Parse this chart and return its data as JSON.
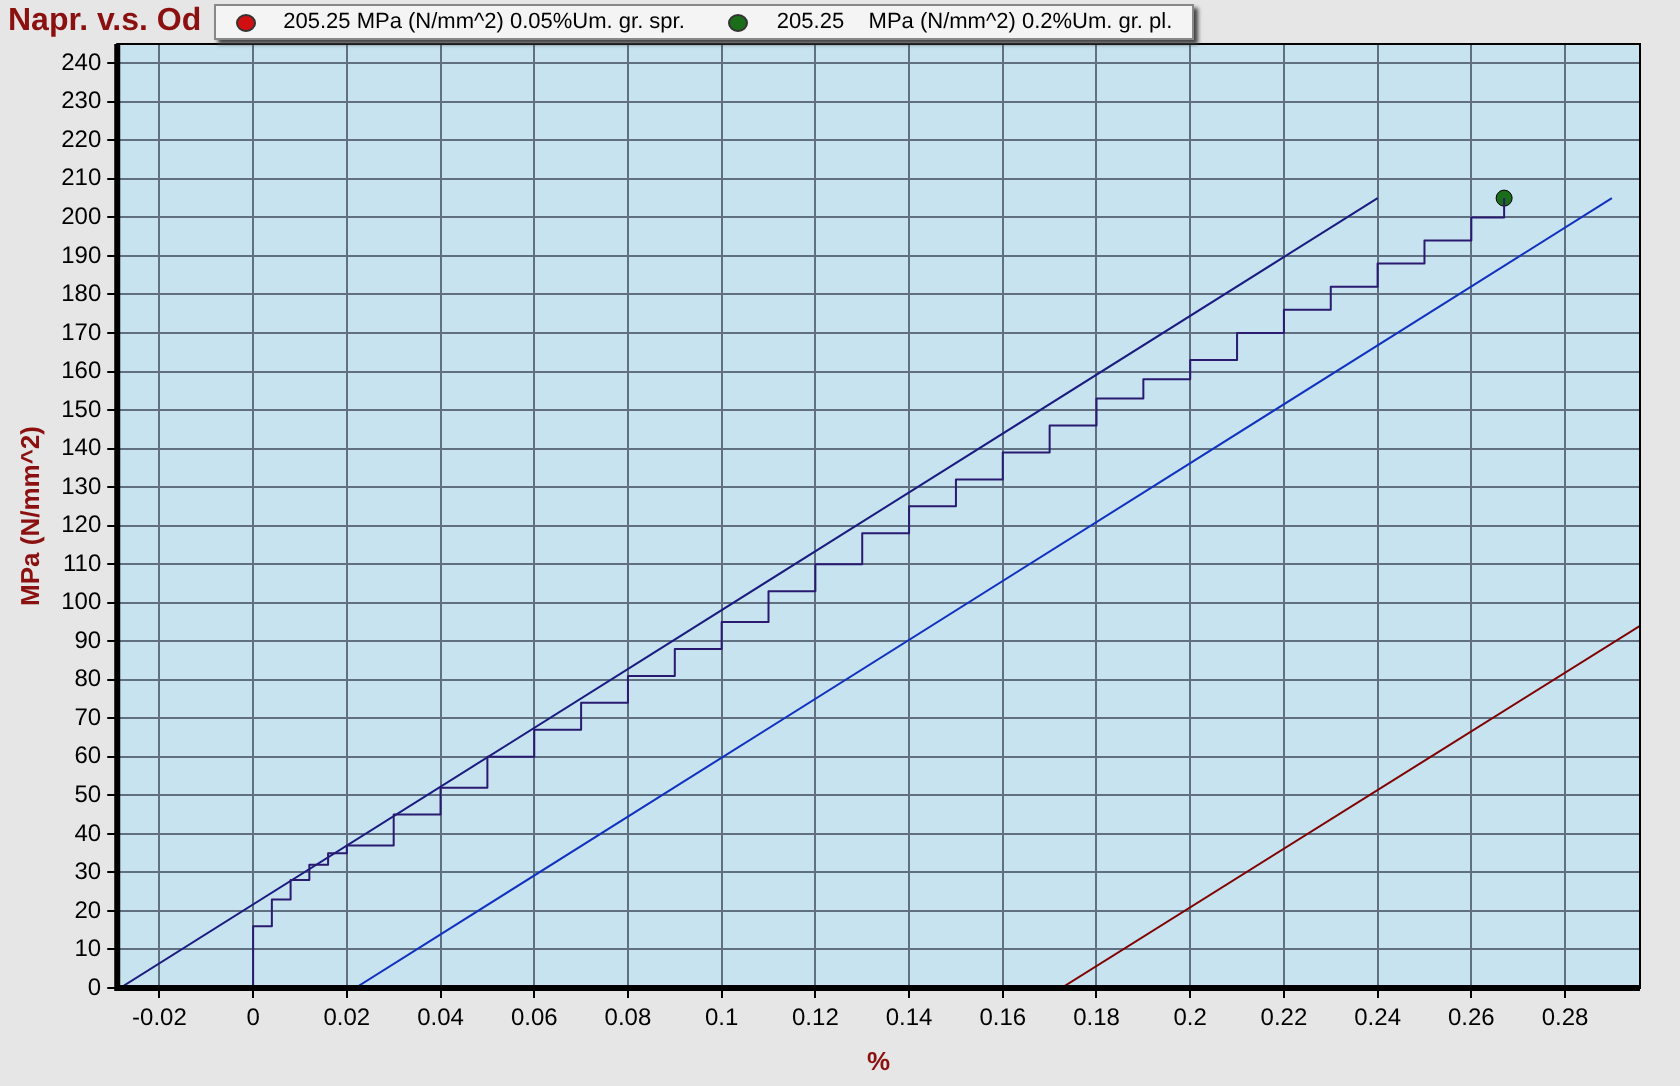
{
  "chart_data": {
    "type": "line",
    "title": "Napr. v.s. Od",
    "xlabel": "%",
    "ylabel": "MPa (N/mm^2)",
    "xlim": [
      -0.029,
      0.296
    ],
    "ylim": [
      0,
      245
    ],
    "xticks": [
      -0.02,
      0,
      0.02,
      0.04,
      0.06,
      0.08,
      0.1,
      0.12,
      0.14,
      0.16,
      0.18,
      0.2,
      0.22,
      0.24,
      0.26,
      0.28
    ],
    "yticks": [
      0,
      10,
      20,
      30,
      40,
      50,
      60,
      70,
      80,
      90,
      100,
      110,
      120,
      130,
      140,
      150,
      160,
      170,
      180,
      190,
      200,
      210,
      220,
      230,
      240
    ],
    "grid": true,
    "legend": "top",
    "marker": "none",
    "series": [
      {
        "type": "step",
        "color": "#2a1a70",
        "x": [
          0,
          0,
          0.004,
          0.008,
          0.012,
          0.016,
          0.02,
          0.03,
          0.04,
          0.05,
          0.06,
          0.07,
          0.08,
          0.09,
          0.1,
          0.11,
          0.12,
          0.13,
          0.14,
          0.15,
          0.16,
          0.17,
          0.18,
          0.19,
          0.2,
          0.21,
          0.22,
          0.23,
          0.24,
          0.25,
          0.26,
          0.267
        ],
        "values": [
          0,
          16,
          23,
          28,
          32,
          35,
          37,
          45,
          52,
          60,
          67,
          74,
          81,
          88,
          95,
          103,
          110,
          118,
          125,
          132,
          139,
          146,
          153,
          158,
          163,
          170,
          176,
          182,
          188,
          194,
          200,
          205
        ]
      },
      {
        "color": "#1a1a80",
        "x": [
          -0.0284,
          0.24
        ],
        "values": [
          0,
          205
        ]
      },
      {
        "color": "#1030c0",
        "x": [
          0.0218,
          0.29
        ],
        "values": [
          0,
          205
        ]
      },
      {
        "color": "#800000",
        "x": [
          0.1725,
          0.296
        ],
        "values": [
          0,
          94
        ]
      },
      {
        "type": "scatter",
        "name": "205.25 MPa (N/mm^2) 0.05%Um. gr. spr.",
        "color": "#d01010",
        "marker": "circle"
      },
      {
        "type": "scatter",
        "name": "205.25    MPa (N/mm^2) 0.2%Um. gr. pl.",
        "color": "#1a6e1a",
        "marker": "circle",
        "x": [
          0.267
        ],
        "values": [
          205
        ]
      }
    ]
  }
}
